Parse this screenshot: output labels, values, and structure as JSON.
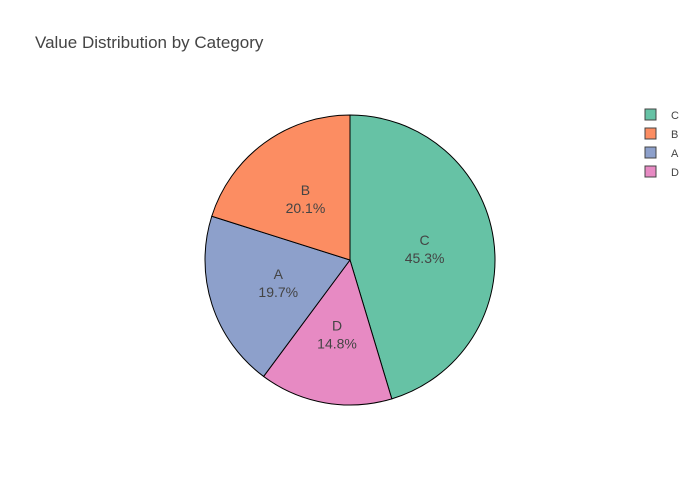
{
  "chart_data": {
    "type": "pie",
    "title": "Value Distribution by Category",
    "slices": [
      {
        "label": "C",
        "value": 45.3,
        "percent_label": "45.3%",
        "color": "#66c2a5"
      },
      {
        "label": "D",
        "value": 14.8,
        "percent_label": "14.8%",
        "color": "#e78ac3"
      },
      {
        "label": "A",
        "value": 19.7,
        "percent_label": "19.7%",
        "color": "#8da0cb"
      },
      {
        "label": "B",
        "value": 20.1,
        "percent_label": "20.1%",
        "color": "#fc8d62"
      }
    ],
    "legend": {
      "placement": "top-right",
      "entries": [
        {
          "label": "C",
          "color": "#66c2a5"
        },
        {
          "label": "B",
          "color": "#fc8d62"
        },
        {
          "label": "A",
          "color": "#8da0cb"
        },
        {
          "label": "D",
          "color": "#e78ac3"
        }
      ]
    },
    "start_angle_deg": 0,
    "direction": "clockwise"
  }
}
